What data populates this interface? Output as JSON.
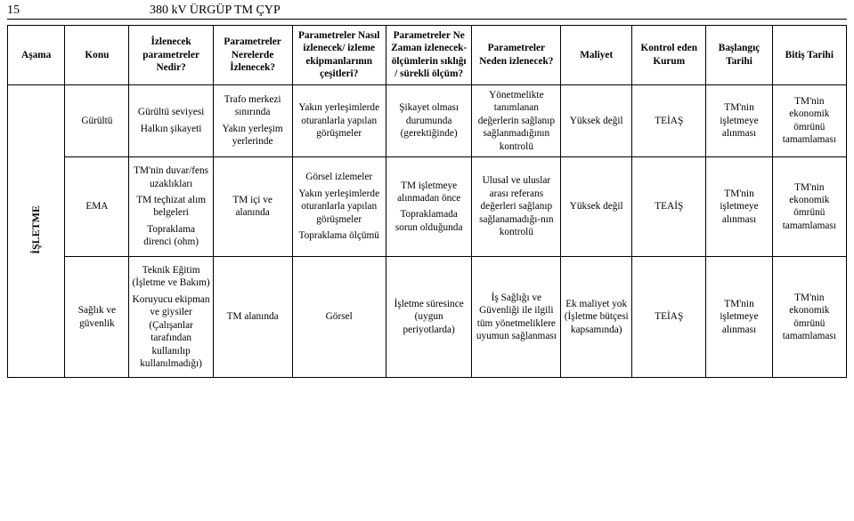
{
  "header": {
    "page_number": "15",
    "title": "380 kV ÜRGÜP TM ÇYP"
  },
  "columns": [
    "Aşama",
    "Konu",
    "İzlenecek parametreler Nedir?",
    "Parametreler Nerelerde İzlenecek?",
    "Parametreler Nasıl izlenecek/ izleme ekipmanlarının çeşitleri?",
    "Parametreler Ne Zaman izlenecek- ölçümlerin sıklığı / sürekli ölçüm?",
    "Parametreler Neden izlenecek?",
    "Maliyet",
    "Kontrol eden Kurum",
    "Başlangıç Tarihi",
    "Bitiş Tarihi"
  ],
  "asama": "İŞLETME",
  "rows": [
    {
      "konu": "Gürültü",
      "param": "Gürültü seviyesi\n\nHalkın şikayeti",
      "nerede": "Trafo merkezi sınırında\n\nYakın yerleşim yerlerinde",
      "nasil": "Yakın yerleşimlerde oturanlarla yapılan görüşmeler",
      "nezaman": "Şikayet olması durumunda (gerektiğinde)",
      "neden": "Yönetmelikte tanımlanan değerlerin sağlanıp sağlanmadığının kontrolü",
      "maliyet": "Yüksek değil",
      "kurum": "TEİAŞ",
      "baslangic": "TM'nin işletmeye alınması",
      "bitis": "TM'nin ekonomik ömrünü tamamlaması"
    },
    {
      "konu": "EMA",
      "param": "TM'nin duvar/fens uzaklıkları\n\nTM teçhizat alım belgeleri\n\nTopraklama direnci (ohm)",
      "nerede": "TM içi ve alanında",
      "nasil": "Görsel izlemeler\n\nYakın yerleşimlerde oturanlarla yapılan görüşmeler\n\nTopraklama ölçümü",
      "nezaman": "TM işletmeye alınmadan önce\n\nTopraklamada sorun olduğunda",
      "neden": "Ulusal ve uluslar arası referans değerleri sağlanıp sağlanamadığı-nın kontrolü",
      "maliyet": "Yüksek değil",
      "kurum": "TEAİŞ",
      "baslangic": "TM'nin işletmeye alınması",
      "bitis": "TM'nin ekonomik ömrünü tamamlaması"
    },
    {
      "konu": "Sağlık ve güvenlik",
      "param": "Teknik Eğitim (İşletme ve Bakım)\n\nKoruyucu ekipman ve giysiler (Çalışanlar tarafından kullanılıp kullanılmadığı)",
      "nerede": "TM alanında",
      "nasil": "Görsel",
      "nezaman": "İşletme süresince (uygun periyotlarda)",
      "neden": "İş Sağlığı ve Güvenliği ile ilgili tüm yönetmeliklere uyumun sağlanması",
      "maliyet": "Ek maliyet yok (İşletme bütçesi kapsamında)",
      "kurum": "TEİAŞ",
      "baslangic": "TM'nin işletmeye alınması",
      "bitis": "TM'nin ekonomik ömrünü tamamlaması"
    }
  ]
}
